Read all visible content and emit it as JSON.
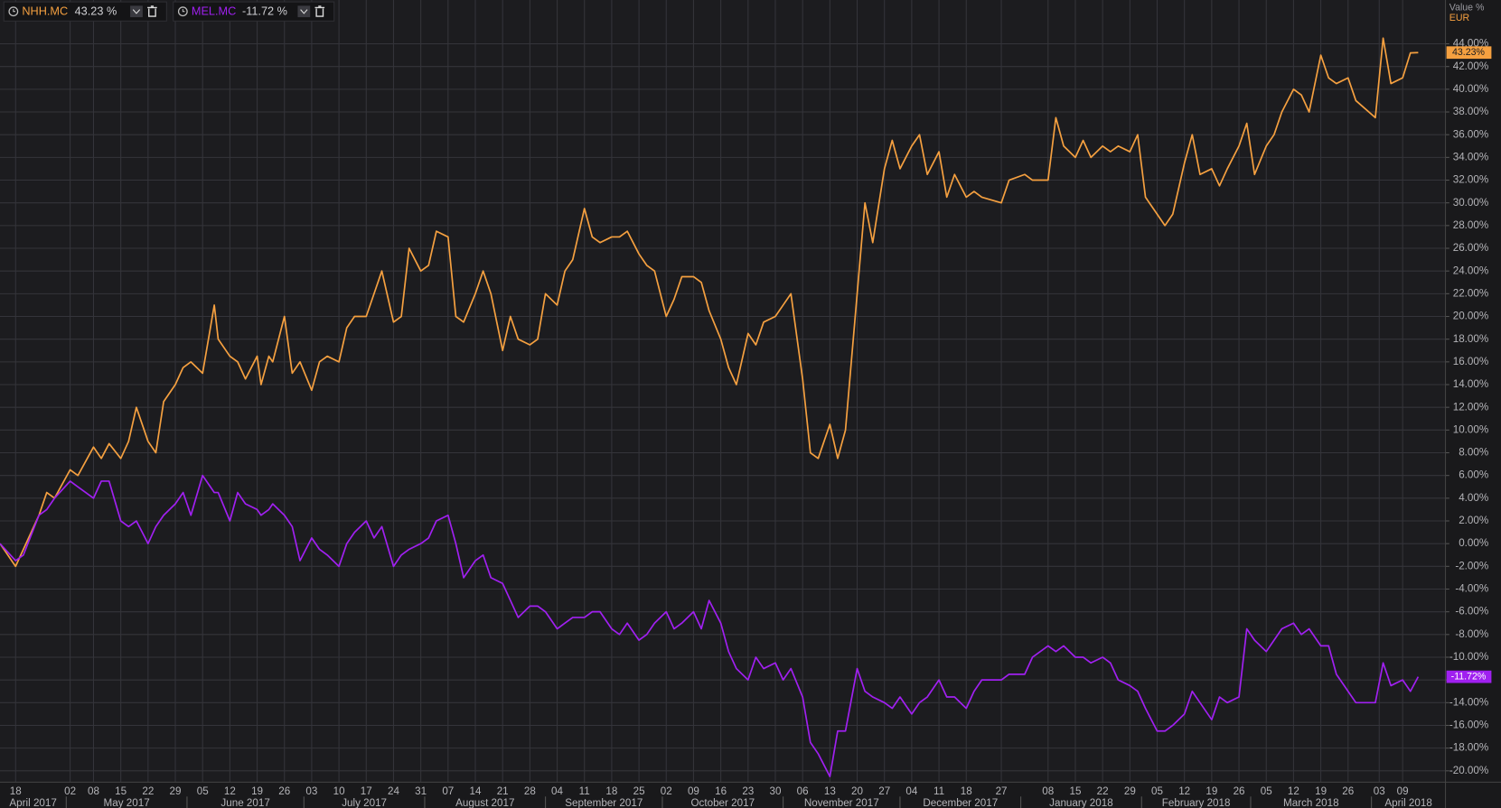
{
  "chart_data": {
    "type": "line",
    "y_axis_title": "Value %",
    "currency": "EUR",
    "x": [
      "2017-04-14",
      "2017-04-18",
      "2017-04-20",
      "2017-04-24",
      "2017-04-26",
      "2017-04-28",
      "2017-05-02",
      "2017-05-04",
      "2017-05-08",
      "2017-05-10",
      "2017-05-12",
      "2017-05-15",
      "2017-05-17",
      "2017-05-19",
      "2017-05-22",
      "2017-05-24",
      "2017-05-26",
      "2017-05-29",
      "2017-05-31",
      "2017-06-02",
      "2017-06-05",
      "2017-06-07",
      "2017-06-08",
      "2017-06-09",
      "2017-06-12",
      "2017-06-14",
      "2017-06-16",
      "2017-06-19",
      "2017-06-20",
      "2017-06-22",
      "2017-06-23",
      "2017-06-26",
      "2017-06-28",
      "2017-06-30",
      "2017-07-03",
      "2017-07-05",
      "2017-07-07",
      "2017-07-10",
      "2017-07-12",
      "2017-07-14",
      "2017-07-17",
      "2017-07-19",
      "2017-07-21",
      "2017-07-24",
      "2017-07-26",
      "2017-07-28",
      "2017-07-31",
      "2017-08-02",
      "2017-08-04",
      "2017-08-07",
      "2017-08-09",
      "2017-08-11",
      "2017-08-14",
      "2017-08-16",
      "2017-08-18",
      "2017-08-21",
      "2017-08-23",
      "2017-08-25",
      "2017-08-28",
      "2017-08-30",
      "2017-09-01",
      "2017-09-04",
      "2017-09-06",
      "2017-09-08",
      "2017-09-11",
      "2017-09-13",
      "2017-09-15",
      "2017-09-18",
      "2017-09-20",
      "2017-09-22",
      "2017-09-25",
      "2017-09-27",
      "2017-09-29",
      "2017-10-02",
      "2017-10-04",
      "2017-10-06",
      "2017-10-09",
      "2017-10-11",
      "2017-10-13",
      "2017-10-16",
      "2017-10-18",
      "2017-10-20",
      "2017-10-23",
      "2017-10-25",
      "2017-10-27",
      "2017-10-30",
      "2017-11-01",
      "2017-11-03",
      "2017-11-06",
      "2017-11-08",
      "2017-11-10",
      "2017-11-13",
      "2017-11-15",
      "2017-11-17",
      "2017-11-20",
      "2017-11-22",
      "2017-11-24",
      "2017-11-27",
      "2017-11-29",
      "2017-12-01",
      "2017-12-04",
      "2017-12-06",
      "2017-12-08",
      "2017-12-11",
      "2017-12-13",
      "2017-12-15",
      "2017-12-18",
      "2017-12-20",
      "2017-12-22",
      "2017-12-27",
      "2017-12-29",
      "2018-01-02",
      "2018-01-04",
      "2018-01-08",
      "2018-01-10",
      "2018-01-12",
      "2018-01-15",
      "2018-01-17",
      "2018-01-19",
      "2018-01-22",
      "2018-01-24",
      "2018-01-26",
      "2018-01-29",
      "2018-01-31",
      "2018-02-02",
      "2018-02-05",
      "2018-02-07",
      "2018-02-09",
      "2018-02-12",
      "2018-02-14",
      "2018-02-16",
      "2018-02-19",
      "2018-02-21",
      "2018-02-23",
      "2018-02-26",
      "2018-02-28",
      "2018-03-02",
      "2018-03-05",
      "2018-03-07",
      "2018-03-09",
      "2018-03-12",
      "2018-03-14",
      "2018-03-16",
      "2018-03-19",
      "2018-03-21",
      "2018-03-23",
      "2018-03-26",
      "2018-03-28",
      "2018-04-02",
      "2018-04-04",
      "2018-04-06",
      "2018-04-09",
      "2018-04-11",
      "2018-04-13"
    ],
    "series": [
      {
        "name": "NHH.MC",
        "color": "#f5a040",
        "legend_value": "43.23 %",
        "axis_badge": "43.23%",
        "values": [
          0,
          -2,
          -0.5,
          2.5,
          4.5,
          4,
          6.5,
          6,
          8.5,
          7.5,
          8.8,
          7.5,
          9,
          12,
          9,
          8,
          12.5,
          14,
          15.5,
          16,
          15,
          19,
          21,
          18,
          16.5,
          16,
          14.5,
          16.5,
          14,
          16.5,
          16,
          20,
          15,
          16,
          13.5,
          16,
          16.5,
          16,
          19,
          20,
          20,
          22,
          24,
          19.5,
          20,
          26,
          24,
          24.5,
          27.5,
          27,
          20,
          19.5,
          22,
          24,
          22,
          17,
          20,
          18,
          17.5,
          18,
          22,
          21,
          24,
          25,
          29.5,
          27,
          26.5,
          27,
          27,
          27.5,
          25.5,
          24.5,
          24,
          20,
          21.5,
          23.5,
          23.5,
          23,
          20.5,
          18,
          15.5,
          14,
          18.5,
          17.5,
          19.5,
          20,
          21,
          22,
          14.5,
          8,
          7.5,
          10.5,
          7.5,
          10,
          22,
          30,
          26.5,
          33,
          35.5,
          33,
          35,
          36,
          32.5,
          34.5,
          30.5,
          32.5,
          30.5,
          31,
          30.5,
          30,
          32,
          32.5,
          32,
          32,
          37.5,
          35,
          34,
          35.5,
          34,
          35,
          34.5,
          35,
          34.5,
          36,
          30.5,
          29,
          28,
          29,
          33.5,
          36,
          32.5,
          33,
          31.5,
          33,
          35,
          37,
          32.5,
          35,
          36,
          38,
          40,
          39.5,
          38,
          43,
          41,
          40.5,
          41,
          39,
          37.5,
          44.5,
          40.5,
          41,
          43.2,
          43.23
        ]
      },
      {
        "name": "MEL.MC",
        "color": "#a020f0",
        "legend_value": "-11.72 %",
        "axis_badge": "-11.72%",
        "values": [
          0,
          -1.5,
          -1,
          2.5,
          3,
          4,
          5.5,
          5,
          4,
          5.5,
          5.5,
          2,
          1.5,
          2,
          0,
          1.5,
          2.5,
          3.5,
          4.5,
          2.5,
          6,
          5,
          4.5,
          4.5,
          2,
          4.5,
          3.5,
          3,
          2.5,
          3,
          3.5,
          2.5,
          1.5,
          -1.5,
          0.5,
          -0.5,
          -1,
          -2,
          0,
          1,
          2,
          0.5,
          1.5,
          -2,
          -1,
          -0.5,
          0,
          0.5,
          2,
          2.5,
          0,
          -3,
          -1.5,
          -1,
          -3,
          -3.5,
          -5,
          -6.5,
          -5.5,
          -5.5,
          -6,
          -7.5,
          -7,
          -6.5,
          -6.5,
          -6,
          -6,
          -7.5,
          -8,
          -7,
          -8.5,
          -8,
          -7,
          -6,
          -7.5,
          -7,
          -6,
          -7.5,
          -5,
          -7,
          -9.5,
          -11,
          -12,
          -10,
          -11,
          -10.5,
          -12,
          -11,
          -13.5,
          -17.5,
          -18.5,
          -20.5,
          -16.5,
          -16.5,
          -11,
          -13,
          -13.5,
          -14,
          -14.5,
          -13.5,
          -15,
          -14,
          -13.5,
          -12,
          -13.5,
          -13.5,
          -14.5,
          -13,
          -12,
          -12,
          -11.5,
          -11.5,
          -10,
          -9,
          -9.5,
          -9,
          -10,
          -10,
          -10.5,
          -10,
          -10.5,
          -12,
          -12.5,
          -13,
          -14.5,
          -16.5,
          -16.5,
          -16,
          -15,
          -13,
          -14,
          -15.5,
          -13.5,
          -14,
          -13.5,
          -7.5,
          -8.5,
          -9.5,
          -8.5,
          -7.5,
          -7,
          -8,
          -7.5,
          -9,
          -9,
          -11.5,
          -13,
          -14,
          -14,
          -10.5,
          -12.5,
          -12,
          -13,
          -11.72
        ]
      }
    ],
    "xlim": [
      "2017-04-14",
      "2018-04-20"
    ],
    "xticks": [
      {
        "value": "2017-04-18",
        "label": "18"
      },
      {
        "value": "2017-05-02",
        "label": "02"
      },
      {
        "value": "2017-05-08",
        "label": "08"
      },
      {
        "value": "2017-05-15",
        "label": "15"
      },
      {
        "value": "2017-05-22",
        "label": "22"
      },
      {
        "value": "2017-05-29",
        "label": "29"
      },
      {
        "value": "2017-06-05",
        "label": "05"
      },
      {
        "value": "2017-06-12",
        "label": "12"
      },
      {
        "value": "2017-06-19",
        "label": "19"
      },
      {
        "value": "2017-06-26",
        "label": "26"
      },
      {
        "value": "2017-07-03",
        "label": "03"
      },
      {
        "value": "2017-07-10",
        "label": "10"
      },
      {
        "value": "2017-07-17",
        "label": "17"
      },
      {
        "value": "2017-07-24",
        "label": "24"
      },
      {
        "value": "2017-07-31",
        "label": "31"
      },
      {
        "value": "2017-08-07",
        "label": "07"
      },
      {
        "value": "2017-08-14",
        "label": "14"
      },
      {
        "value": "2017-08-21",
        "label": "21"
      },
      {
        "value": "2017-08-28",
        "label": "28"
      },
      {
        "value": "2017-09-04",
        "label": "04"
      },
      {
        "value": "2017-09-11",
        "label": "11"
      },
      {
        "value": "2017-09-18",
        "label": "18"
      },
      {
        "value": "2017-09-25",
        "label": "25"
      },
      {
        "value": "2017-10-02",
        "label": "02"
      },
      {
        "value": "2017-10-09",
        "label": "09"
      },
      {
        "value": "2017-10-16",
        "label": "16"
      },
      {
        "value": "2017-10-23",
        "label": "23"
      },
      {
        "value": "2017-10-30",
        "label": "30"
      },
      {
        "value": "2017-11-06",
        "label": "06"
      },
      {
        "value": "2017-11-13",
        "label": "13"
      },
      {
        "value": "2017-11-20",
        "label": "20"
      },
      {
        "value": "2017-11-27",
        "label": "27"
      },
      {
        "value": "2017-12-04",
        "label": "04"
      },
      {
        "value": "2017-12-11",
        "label": "11"
      },
      {
        "value": "2017-12-18",
        "label": "18"
      },
      {
        "value": "2017-12-27",
        "label": "27"
      },
      {
        "value": "2018-01-08",
        "label": "08"
      },
      {
        "value": "2018-01-15",
        "label": "15"
      },
      {
        "value": "2018-01-22",
        "label": "22"
      },
      {
        "value": "2018-01-29",
        "label": "29"
      },
      {
        "value": "2018-02-05",
        "label": "05"
      },
      {
        "value": "2018-02-12",
        "label": "12"
      },
      {
        "value": "2018-02-19",
        "label": "19"
      },
      {
        "value": "2018-02-26",
        "label": "26"
      },
      {
        "value": "2018-03-05",
        "label": "05"
      },
      {
        "value": "2018-03-12",
        "label": "12"
      },
      {
        "value": "2018-03-19",
        "label": "19"
      },
      {
        "value": "2018-03-26",
        "label": "26"
      },
      {
        "value": "2018-04-03",
        "label": "03"
      },
      {
        "value": "2018-04-09",
        "label": "09"
      }
    ],
    "month_labels": [
      "April 2017",
      "May 2017",
      "June 2017",
      "July 2017",
      "August 2017",
      "September 2017",
      "October 2017",
      "November 2017",
      "December 2017",
      "January 2018",
      "February 2018",
      "March 2018",
      "April 2018"
    ],
    "ylim": [
      -21,
      45.5
    ],
    "yticks": [
      {
        "value": -20,
        "label": "-20.00%"
      },
      {
        "value": -18,
        "label": "-18.00%"
      },
      {
        "value": -16,
        "label": "-16.00%"
      },
      {
        "value": -14,
        "label": "-14.00%"
      },
      {
        "value": -12,
        "label": "-12.00%"
      },
      {
        "value": -10,
        "label": "-10.00%"
      },
      {
        "value": -8,
        "label": "-8.00%"
      },
      {
        "value": -6,
        "label": "-6.00%"
      },
      {
        "value": -4,
        "label": "-4.00%"
      },
      {
        "value": -2,
        "label": "-2.00%"
      },
      {
        "value": 0,
        "label": "0.00%"
      },
      {
        "value": 2,
        "label": "2.00%"
      },
      {
        "value": 4,
        "label": "4.00%"
      },
      {
        "value": 6,
        "label": "6.00%"
      },
      {
        "value": 8,
        "label": "8.00%"
      },
      {
        "value": 10,
        "label": "10.00%"
      },
      {
        "value": 12,
        "label": "12.00%"
      },
      {
        "value": 14,
        "label": "14.00%"
      },
      {
        "value": 16,
        "label": "16.00%"
      },
      {
        "value": 18,
        "label": "18.00%"
      },
      {
        "value": 20,
        "label": "20.00%"
      },
      {
        "value": 22,
        "label": "22.00%"
      },
      {
        "value": 24,
        "label": "24.00%"
      },
      {
        "value": 26,
        "label": "26.00%"
      },
      {
        "value": 28,
        "label": "28.00%"
      },
      {
        "value": 30,
        "label": "30.00%"
      },
      {
        "value": 32,
        "label": "32.00%"
      },
      {
        "value": 34,
        "label": "34.00%"
      },
      {
        "value": 36,
        "label": "36.00%"
      },
      {
        "value": 38,
        "label": "38.00%"
      },
      {
        "value": 40,
        "label": "40.00%"
      },
      {
        "value": 42,
        "label": "42.00%"
      },
      {
        "value": 44,
        "label": "44.00%"
      }
    ],
    "grid": true
  }
}
